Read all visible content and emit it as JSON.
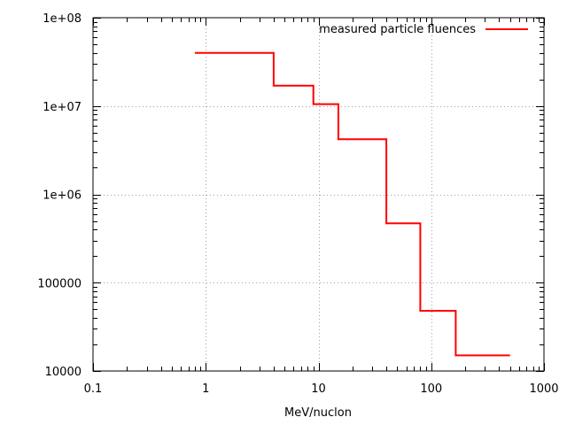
{
  "chart_data": {
    "type": "line",
    "subtype": "step",
    "title": "",
    "xlabel": "MeV/nuclon",
    "ylabel": "",
    "xscale": "log",
    "yscale": "log",
    "xlim": [
      0.1,
      1000
    ],
    "ylim": [
      10000,
      100000000
    ],
    "x_ticks": [
      {
        "value": 0.1,
        "label": "0.1"
      },
      {
        "value": 1,
        "label": "1"
      },
      {
        "value": 10,
        "label": "10"
      },
      {
        "value": 100,
        "label": "100"
      },
      {
        "value": 1000,
        "label": "1000"
      }
    ],
    "y_ticks": [
      {
        "value": 10000,
        "label": "10000"
      },
      {
        "value": 100000,
        "label": "100000"
      },
      {
        "value": 1000000,
        "label": "1e+06"
      },
      {
        "value": 10000000,
        "label": "1e+07"
      },
      {
        "value": 100000000,
        "label": "1e+08"
      }
    ],
    "grid": true,
    "legend_position": "top-right",
    "series": [
      {
        "name": "measured particle fluences",
        "color": "#ff0000",
        "steps": [
          {
            "x_start": 0.8,
            "x_end": 4,
            "y": 40000000
          },
          {
            "x_start": 4,
            "x_end": 9,
            "y": 17000000
          },
          {
            "x_start": 9,
            "x_end": 15,
            "y": 10500000
          },
          {
            "x_start": 15,
            "x_end": 40,
            "y": 4200000
          },
          {
            "x_start": 40,
            "x_end": 80,
            "y": 470000
          },
          {
            "x_start": 80,
            "x_end": 165,
            "y": 48000
          },
          {
            "x_start": 165,
            "x_end": 500,
            "y": 15000
          }
        ]
      }
    ]
  }
}
